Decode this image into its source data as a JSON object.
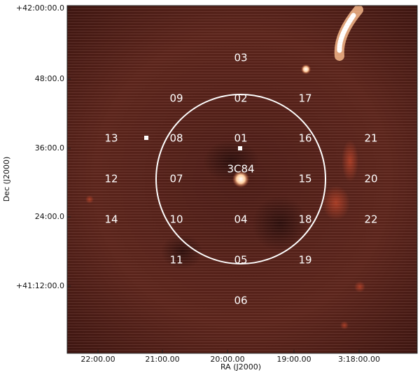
{
  "image": {
    "x_axis": {
      "label": "RA (J2000)",
      "ticks": [
        "22:00.00",
        "21:00.00",
        "20:00.00",
        "19:00.00",
        "3:18:00.00"
      ]
    },
    "y_axis": {
      "label": "Dec (J2000)",
      "ticks": [
        "+42:00:00.0",
        "48:00.0",
        "36:00.0",
        "24:00.0",
        "+41:12:00.0"
      ]
    },
    "source_label": "3C84",
    "fields": [
      "03",
      "09",
      "02",
      "17",
      "13",
      "08",
      "01",
      "16",
      "21",
      "12",
      "07",
      "15",
      "20",
      "14",
      "10",
      "04",
      "18",
      "22",
      "11",
      "05",
      "19",
      "06"
    ]
  }
}
